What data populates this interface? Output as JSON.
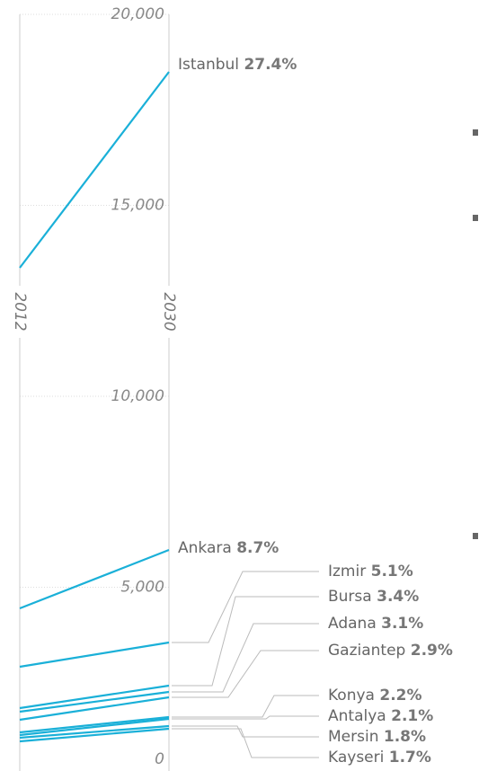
{
  "chart_data": {
    "type": "slope",
    "x": [
      "2012",
      "2030"
    ],
    "ylim": [
      0,
      20000
    ],
    "yticks": [
      {
        "value": 0,
        "label": "0"
      },
      {
        "value": 5000,
        "label": "5,000"
      },
      {
        "value": 10000,
        "label": "10,000"
      },
      {
        "value": 15000,
        "label": "15,000"
      },
      {
        "value": 20000,
        "label": "20,000"
      }
    ],
    "color": "#1ab0d8",
    "series": [
      {
        "name": "Istanbul",
        "share": "27.4%",
        "values": [
          13365,
          18494
        ]
      },
      {
        "name": "Ankara",
        "share": "8.7%",
        "values": [
          4447,
          5976
        ]
      },
      {
        "name": "Izmir",
        "share": "5.1%",
        "values": [
          2918,
          3553
        ]
      },
      {
        "name": "Bursa",
        "share": "3.4%",
        "values": [
          1835,
          2424
        ]
      },
      {
        "name": "Adana",
        "share": "3.1%",
        "values": [
          1741,
          2259
        ]
      },
      {
        "name": "Gaziantep",
        "share": "2.9%",
        "values": [
          1529,
          2118
        ]
      },
      {
        "name": "Konya",
        "share": "2.2%",
        "values": [
          1200,
          1600
        ]
      },
      {
        "name": "Antalya",
        "share": "2.1%",
        "values": [
          1129,
          1553
        ]
      },
      {
        "name": "Mersin",
        "share": "1.8%",
        "values": [
          1059,
          1365
        ]
      },
      {
        "name": "Kayseri",
        "share": "1.7%",
        "values": [
          965,
          1294
        ]
      }
    ]
  }
}
